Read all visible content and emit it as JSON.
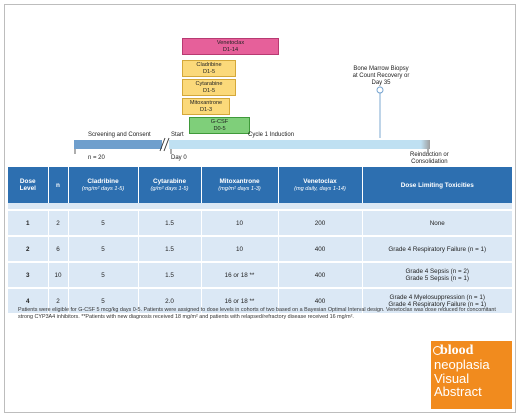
{
  "timeline": {
    "bars": {
      "venetoclax": {
        "name": "Venetoclax",
        "days": "D1-14"
      },
      "cladribine": {
        "name": "Cladribine",
        "days": "D1-5"
      },
      "cytarabine": {
        "name": "Cytarabine",
        "days": "D1-5"
      },
      "mitoxantrone": {
        "name": "Mitoxantrone",
        "days": "D1-3"
      },
      "gcsf": {
        "name": "G-CSF",
        "days": "D0-5"
      }
    },
    "biopsy": {
      "line1": "Bone Marrow Biopsy",
      "line2": "at Count Recovery or",
      "line3": "Day 35"
    },
    "screening_label": "Screening and Consent",
    "start_label": "Start",
    "cycle_label": "Cycle 1 Induction",
    "n_label": "n = 20",
    "day0_label": "Day 0",
    "reinduction_line1": "Reinduction or",
    "reinduction_line2": "Consolidation",
    "colors": {
      "screening": "#6f9fcd",
      "cycle": "#bfe0f2",
      "end": "#9e9e9e"
    }
  },
  "table": {
    "headers": {
      "dose_level": {
        "line1": "Dose",
        "line2": "Level"
      },
      "n": "n",
      "cladribine": {
        "name": "Cladribine",
        "unit": "(mg/m² days 1-5)"
      },
      "cytarabine": {
        "name": "Cytarabine",
        "unit": "(g/m² days 1-5)"
      },
      "mitoxantrone": {
        "name": "Mitoxantrone",
        "unit": "(mg/m² days 1-3)"
      },
      "venetoclax": {
        "name": "Venetoclax",
        "unit": "(mg daily, days 1-14)"
      },
      "dlt": "Dose Limiting Toxicities"
    },
    "rows": [
      {
        "level": "1",
        "n": "2",
        "cladribine": "5",
        "cytarabine": "1.5",
        "mitoxantrone": "10",
        "venetoclax": "200",
        "dlt1": "None",
        "dlt2": ""
      },
      {
        "level": "2",
        "n": "6",
        "cladribine": "5",
        "cytarabine": "1.5",
        "mitoxantrone": "10",
        "venetoclax": "400",
        "dlt1": "Grade 4 Respiratory Failure (n = 1)",
        "dlt2": ""
      },
      {
        "level": "3",
        "n": "10",
        "cladribine": "5",
        "cytarabine": "1.5",
        "mitoxantrone": "16 or 18 **",
        "venetoclax": "400",
        "dlt1": "Grade 4 Sepsis (n = 2)",
        "dlt2": "Grade 5 Sepsis (n = 1)"
      },
      {
        "level": "4",
        "n": "2",
        "cladribine": "5",
        "cytarabine": "2.0",
        "mitoxantrone": "16 or 18 **",
        "venetoclax": "400",
        "dlt1": "Grade 4 Myelosuppression (n = 1)",
        "dlt2": "Grade 4 Respiratory Failure (n = 1)"
      }
    ]
  },
  "footnote": "Patients were eligible for G-CSF 5 mcg/kg days 0-5. Patients were assigned to dose levels in cohorts of two based on a Bayesian Optimal Interval design. Venetoclax was dose reduced for concomitant strong CYP3A4 inhibitors. **Patients with new diagnosis received 18 mg/m² and patients with relapsed/refractory disease received 16 mg/m².",
  "brand": {
    "line1": "blood",
    "line2": "neoplasia",
    "line3": "Visual",
    "line4": "Abstract",
    "color": "#f18b1e"
  }
}
